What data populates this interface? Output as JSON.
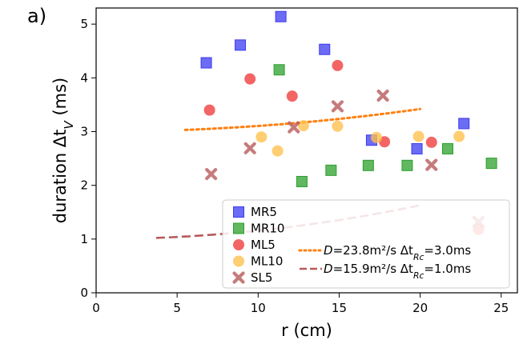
{
  "chart_data": {
    "type": "scatter",
    "panel_label": "a)",
    "xlabel": "r (cm)",
    "ylabel": "duration Δt_V (ms)",
    "xlim": [
      0,
      26
    ],
    "ylim": [
      0,
      5.3
    ],
    "xticks": [
      "0",
      "5",
      "10",
      "15",
      "20",
      "25"
    ],
    "yticks": [
      "0",
      "1",
      "2",
      "3",
      "4",
      "5"
    ],
    "grid": false,
    "legend_position": "lower-right",
    "series": [
      {
        "name": "MR5",
        "marker": "square",
        "color": "#3b3bf0",
        "points": [
          [
            6.8,
            4.28
          ],
          [
            8.9,
            4.61
          ],
          [
            11.4,
            5.14
          ],
          [
            14.1,
            4.53
          ],
          [
            17.0,
            2.84
          ],
          [
            19.8,
            2.68
          ],
          [
            22.7,
            3.15
          ]
        ]
      },
      {
        "name": "MR10",
        "marker": "square",
        "color": "#2ca02c",
        "points": [
          [
            11.3,
            4.15
          ],
          [
            12.7,
            2.07
          ],
          [
            14.5,
            2.28
          ],
          [
            16.8,
            2.37
          ],
          [
            19.2,
            2.37
          ],
          [
            21.7,
            2.68
          ],
          [
            24.4,
            2.41
          ]
        ]
      },
      {
        "name": "ML5",
        "marker": "circle",
        "color": "#f03a3a",
        "points": [
          [
            7.0,
            3.4
          ],
          [
            9.5,
            3.98
          ],
          [
            12.1,
            3.66
          ],
          [
            14.9,
            4.23
          ],
          [
            17.8,
            2.81
          ],
          [
            20.7,
            2.8
          ],
          [
            23.6,
            1.18
          ]
        ]
      },
      {
        "name": "ML10",
        "marker": "circle",
        "color": "#ffbf4a",
        "points": [
          [
            10.2,
            2.9
          ],
          [
            11.2,
            2.64
          ],
          [
            12.8,
            3.11
          ],
          [
            14.9,
            3.1
          ],
          [
            17.3,
            2.89
          ],
          [
            19.9,
            2.91
          ],
          [
            22.4,
            2.91
          ]
        ]
      },
      {
        "name": "SL5",
        "marker": "x",
        "color": "#b85a5a",
        "points": [
          [
            7.1,
            2.21
          ],
          [
            9.5,
            2.69
          ],
          [
            12.2,
            3.08
          ],
          [
            14.9,
            3.47
          ],
          [
            17.7,
            3.67
          ],
          [
            20.7,
            2.38
          ],
          [
            23.6,
            1.32
          ]
        ]
      }
    ],
    "fits": [
      {
        "label": "D=23.8m²/s  Δt_Rc=3.0ms",
        "style": "dotted",
        "color": "#ff7f0e",
        "D": 23.8,
        "t_rc": 3.0,
        "x_range": [
          5.5,
          20.0
        ]
      },
      {
        "label": "D=15.9m²/s  Δt_Rc=1.0ms",
        "style": "dashed",
        "color": "#b85a5a",
        "D": 15.9,
        "t_rc": 1.0,
        "x_range": [
          3.7,
          20.0
        ]
      }
    ]
  }
}
